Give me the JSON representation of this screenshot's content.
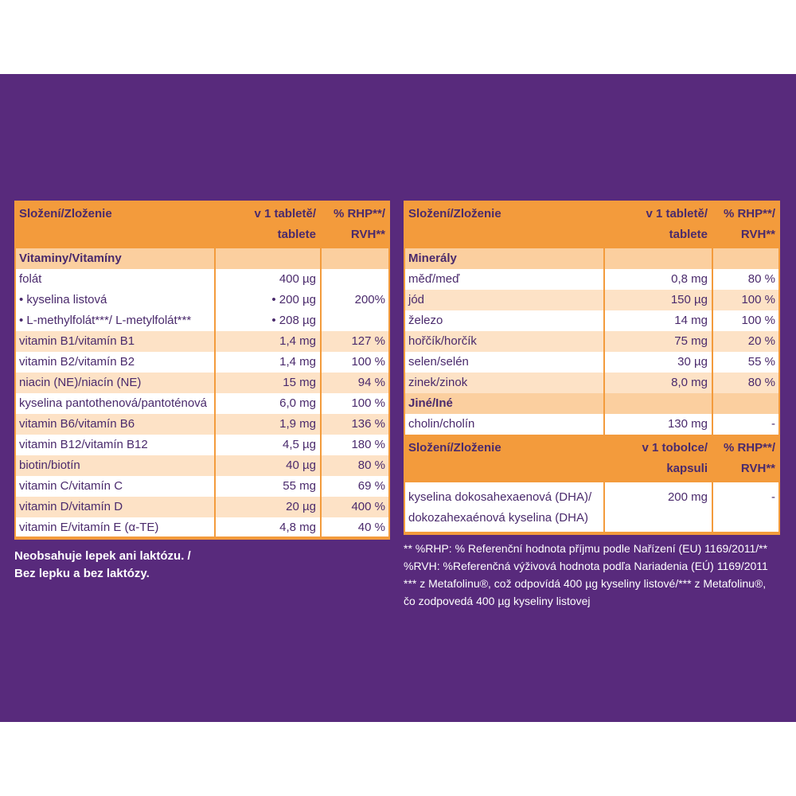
{
  "left_table": {
    "header": {
      "name": [
        "Složení/Zloženie"
      ],
      "amount": [
        "v 1 tabletě/",
        "tablete"
      ],
      "pct": [
        "% RHP**/",
        "RVH**"
      ]
    },
    "sections": [
      {
        "title": "Vitaminy/Vitamíny",
        "rows": [
          {
            "lines": [
              {
                "name": "folát",
                "amount": "400 µg"
              },
              {
                "name": "• kyselina listová",
                "amount": "• 200 µg"
              },
              {
                "name": "• L-methylfolát***/ L-metylfolát***",
                "amount": "• 208 µg"
              }
            ],
            "pct": "200%"
          },
          {
            "name": "vitamin B1/vitamín B1",
            "amount": "1,4 mg",
            "pct": "127 %"
          },
          {
            "name": "vitamin B2/vitamín B2",
            "amount": "1,4 mg",
            "pct": "100 %"
          },
          {
            "name": "niacin (NE)/niacín (NE)",
            "amount": "15 mg",
            "pct": "94 %"
          },
          {
            "name": "kyselina pantothenová/pantoténová",
            "amount": "6,0 mg",
            "pct": "100 %"
          },
          {
            "name": "vitamin B6/vitamín B6",
            "amount": "1,9 mg",
            "pct": "136 %"
          },
          {
            "name": "vitamin B12/vitamín B12",
            "amount": "4,5 µg",
            "pct": "180 %"
          },
          {
            "name": "biotin/biotín",
            "amount": "40 µg",
            "pct": "80 %"
          },
          {
            "name": "vitamin C/vitamín C",
            "amount": "55 mg",
            "pct": "69 %"
          },
          {
            "name": "vitamin D/vitamín D",
            "amount": "20 µg",
            "pct": "400 %"
          },
          {
            "name": "vitamin E/vitamín E (α-TE)",
            "amount": "4,8 mg",
            "pct": "40 %"
          }
        ]
      }
    ]
  },
  "right_table": {
    "header": {
      "name": [
        "Složení/Zloženie"
      ],
      "amount": [
        "v 1 tabletě/",
        "tablete"
      ],
      "pct": [
        "% RHP**/",
        "RVH**"
      ]
    },
    "sections": [
      {
        "title": "Minerály",
        "rows": [
          {
            "name": "měď/meď",
            "amount": "0,8 mg",
            "pct": "80 %"
          },
          {
            "name": "jód",
            "amount": "150 µg",
            "pct": "100 %"
          },
          {
            "name": "železo",
            "amount": "14 mg",
            "pct": "100 %"
          },
          {
            "name": "hořčík/horčík",
            "amount": "75 mg",
            "pct": "20 %"
          },
          {
            "name": "selen/selén",
            "amount": "30 µg",
            "pct": "55 %"
          },
          {
            "name": "zinek/zinok",
            "amount": "8,0 mg",
            "pct": "80 %"
          }
        ]
      },
      {
        "title": "Jiné/Iné",
        "rows": [
          {
            "name": "cholin/cholín",
            "amount": "130 mg",
            "pct": "-"
          }
        ]
      }
    ],
    "header2": {
      "name": [
        "Složení/Zloženie"
      ],
      "amount": [
        "v 1 tobolce/",
        "kapsuli"
      ],
      "pct": [
        "% RHP**/",
        "RVH**"
      ]
    },
    "rows2": [
      {
        "name": [
          "kyselina dokosahexaenová (DHA)/",
          "dokozahexaénová kyselina (DHA)"
        ],
        "amount": "200 mg",
        "pct": "-"
      }
    ]
  },
  "left_note": [
    "Neobsahuje lepek ani laktózu. /",
    "Bez lepku a bez laktózy."
  ],
  "right_note": [
    "** %RHP: % Referenční hodnota příjmu podle Nařízení (EU) 1169/2011/**",
    "%RVH: %Referenčná výživová hodnota podľa Nariadenia (EÚ)  1169/2011",
    "*** z Metafolinu®, což odpovídá 400 µg kyseliny listové/*** z Metafolinu®,",
    "čo zodpovedá 400 µg kyseliny listovej"
  ]
}
